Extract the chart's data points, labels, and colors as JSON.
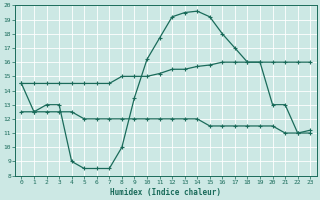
{
  "xlabel": "Humidex (Indice chaleur)",
  "bg_color": "#cce8e4",
  "line_color": "#1a6b5a",
  "grid_color": "#ffffff",
  "xlim": [
    -0.5,
    23.5
  ],
  "ylim": [
    8,
    20
  ],
  "yticks": [
    8,
    9,
    10,
    11,
    12,
    13,
    14,
    15,
    16,
    17,
    18,
    19,
    20
  ],
  "xticks": [
    0,
    1,
    2,
    3,
    4,
    5,
    6,
    7,
    8,
    9,
    10,
    11,
    12,
    13,
    14,
    15,
    16,
    17,
    18,
    19,
    20,
    21,
    22,
    23
  ],
  "line1_x": [
    0,
    1,
    2,
    3,
    4,
    5,
    6,
    7,
    8,
    9,
    10,
    11,
    12,
    13,
    14,
    15,
    16,
    17,
    18,
    19,
    20,
    21,
    22,
    23
  ],
  "line1_y": [
    14.5,
    12.5,
    13.0,
    13.0,
    9.0,
    8.5,
    8.5,
    8.5,
    10.0,
    13.5,
    16.2,
    17.7,
    19.2,
    19.5,
    19.6,
    19.2,
    18.0,
    17.0,
    16.0,
    16.0,
    13.0,
    13.0,
    11.0,
    11.2
  ],
  "line2_x": [
    0,
    1,
    2,
    3,
    4,
    5,
    6,
    7,
    8,
    9,
    10,
    11,
    12,
    13,
    14,
    15,
    16,
    17,
    18,
    19,
    20,
    21,
    22,
    23
  ],
  "line2_y": [
    14.5,
    14.5,
    14.5,
    14.5,
    14.5,
    14.5,
    14.5,
    14.5,
    15.0,
    15.0,
    15.0,
    15.2,
    15.5,
    15.5,
    15.7,
    15.8,
    16.0,
    16.0,
    16.0,
    16.0,
    16.0,
    16.0,
    16.0,
    16.0
  ],
  "line3_x": [
    0,
    1,
    2,
    3,
    4,
    5,
    6,
    7,
    8,
    9,
    10,
    11,
    12,
    13,
    14,
    15,
    16,
    17,
    18,
    19,
    20,
    21,
    22,
    23
  ],
  "line3_y": [
    12.5,
    12.5,
    12.5,
    12.5,
    12.5,
    12.0,
    12.0,
    12.0,
    12.0,
    12.0,
    12.0,
    12.0,
    12.0,
    12.0,
    12.0,
    11.5,
    11.5,
    11.5,
    11.5,
    11.5,
    11.5,
    11.0,
    11.0,
    11.0
  ]
}
